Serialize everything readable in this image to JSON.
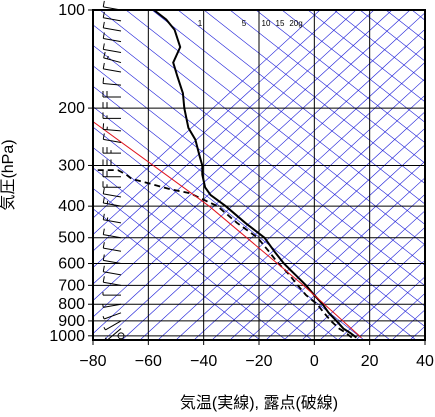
{
  "chart_data": {
    "type": "line",
    "subtype": "skew-t thermodynamic diagram",
    "xlabel": "気温(実線), 露点(破線)",
    "ylabel": "気圧(hPa)",
    "x_unit": "°C",
    "y_unit": "hPa",
    "xlim": [
      -80,
      40
    ],
    "ylim": [
      1030,
      100
    ],
    "y_scale": "log",
    "x_ticks": [
      -80,
      -60,
      -40,
      -20,
      0,
      20,
      40
    ],
    "x_tick_labels": [
      "−80",
      "−60",
      "−40",
      "−20",
      "0",
      "20",
      "40"
    ],
    "y_ticks": [
      100,
      200,
      300,
      400,
      500,
      600,
      700,
      800,
      900,
      1000
    ],
    "y_tick_labels": [
      "100",
      "200",
      "300",
      "400",
      "500",
      "600",
      "700",
      "800",
      "900",
      "1000"
    ],
    "grid": true,
    "mixing_ratio_labels": [
      "1",
      "5",
      "10",
      "15",
      "20g"
    ],
    "colors": {
      "frame": "#000000",
      "grid": "#000000",
      "background_lines": "#1c1cd8",
      "parcel": "#e0141e",
      "temperature": "#000000",
      "dewpoint": "#000000"
    },
    "series": [
      {
        "name": "temperature",
        "style": "solid",
        "points": [
          [
            15.2,
            1013
          ],
          [
            13.0,
            980
          ],
          [
            10.5,
            950
          ],
          [
            8.0,
            900
          ],
          [
            5.2,
            850
          ],
          [
            3.0,
            800
          ],
          [
            0.0,
            750
          ],
          [
            -3.0,
            700
          ],
          [
            -6.8,
            650
          ],
          [
            -8.5,
            630
          ],
          [
            -11.0,
            600
          ],
          [
            -14.5,
            550
          ],
          [
            -18.0,
            500
          ],
          [
            -25.0,
            450
          ],
          [
            -32.0,
            400
          ],
          [
            -37.5,
            370
          ],
          [
            -39.5,
            350
          ],
          [
            -40.5,
            320
          ],
          [
            -40.5,
            300
          ],
          [
            -41.5,
            280
          ],
          [
            -43.0,
            250
          ],
          [
            -45.5,
            230
          ],
          [
            -47.0,
            200
          ],
          [
            -47.5,
            180
          ],
          [
            -49.5,
            160
          ],
          [
            -51.0,
            145
          ],
          [
            -48.5,
            130
          ],
          [
            -50.5,
            115
          ],
          [
            -53.5,
            107
          ],
          [
            -58.0,
            100
          ]
        ]
      },
      {
        "name": "dewpoint",
        "style": "dashed",
        "points": [
          [
            13.5,
            1013
          ],
          [
            11.5,
            980
          ],
          [
            9.0,
            950
          ],
          [
            6.0,
            900
          ],
          [
            3.5,
            850
          ],
          [
            1.0,
            800
          ],
          [
            -3.0,
            750
          ],
          [
            -6.0,
            700
          ],
          [
            -9.0,
            650
          ],
          [
            -10.5,
            630
          ],
          [
            -13.0,
            600
          ],
          [
            -16.5,
            550
          ],
          [
            -20.5,
            500
          ],
          [
            -28.0,
            450
          ],
          [
            -35.0,
            400
          ],
          [
            -45.0,
            365
          ],
          [
            -52.0,
            355
          ],
          [
            -60.0,
            340
          ],
          [
            -66.0,
            330
          ],
          [
            -68.0,
            320
          ],
          [
            -71.0,
            310
          ],
          [
            -80.0,
            310
          ]
        ]
      },
      {
        "name": "parcel",
        "style": "solid",
        "points": [
          [
            17.0,
            1013
          ],
          [
            -4.0,
            700
          ],
          [
            -38.0,
            400
          ],
          [
            -80.0,
            220
          ]
        ]
      }
    ],
    "wind_barbs": {
      "pressures": [
        100,
        108,
        116,
        125,
        135,
        145,
        155,
        170,
        185,
        200,
        215,
        235,
        255,
        275,
        300,
        325,
        350,
        375,
        400,
        450,
        500,
        550,
        600,
        650,
        700,
        750,
        800,
        850,
        900,
        950,
        1000
      ],
      "speeds_kt": [
        10,
        10,
        10,
        10,
        10,
        15,
        10,
        10,
        20,
        20,
        15,
        15,
        10,
        25,
        30,
        20,
        15,
        10,
        15,
        15,
        10,
        10,
        10,
        10,
        10,
        5,
        5,
        5,
        5,
        5,
        0
      ],
      "directions_deg": [
        280,
        280,
        280,
        280,
        280,
        285,
        280,
        275,
        270,
        270,
        270,
        275,
        280,
        270,
        270,
        270,
        270,
        280,
        280,
        280,
        280,
        280,
        280,
        280,
        280,
        270,
        260,
        250,
        240,
        230,
        0
      ]
    }
  }
}
